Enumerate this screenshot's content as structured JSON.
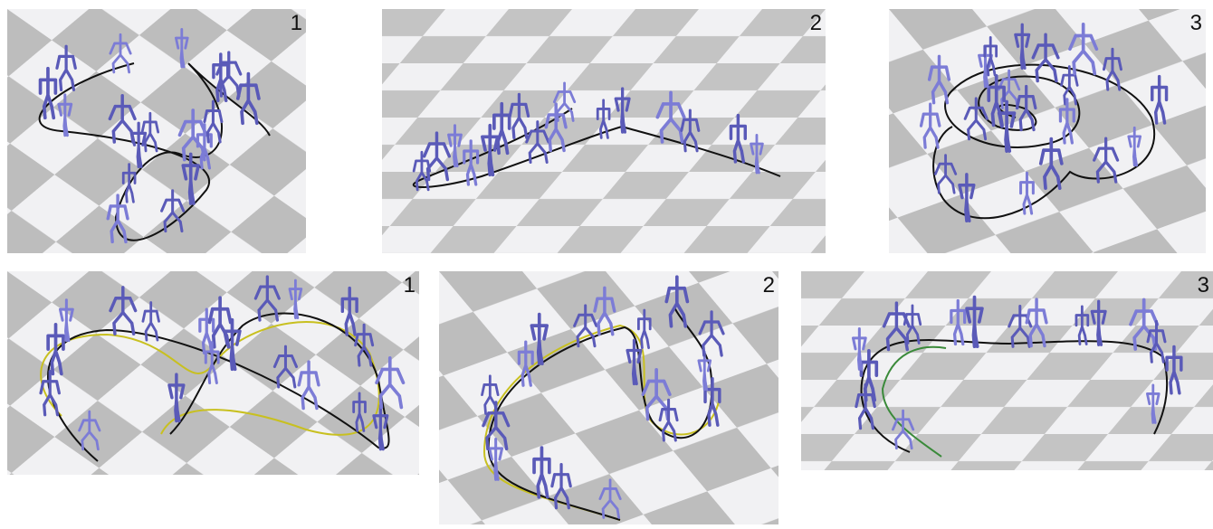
{
  "rows": [
    {
      "panels": [
        {
          "label": "1"
        },
        {
          "label": "2"
        },
        {
          "label": "3"
        }
      ]
    },
    {
      "panels": [
        {
          "label": "1"
        },
        {
          "label": "2"
        },
        {
          "label": "3"
        }
      ]
    }
  ]
}
